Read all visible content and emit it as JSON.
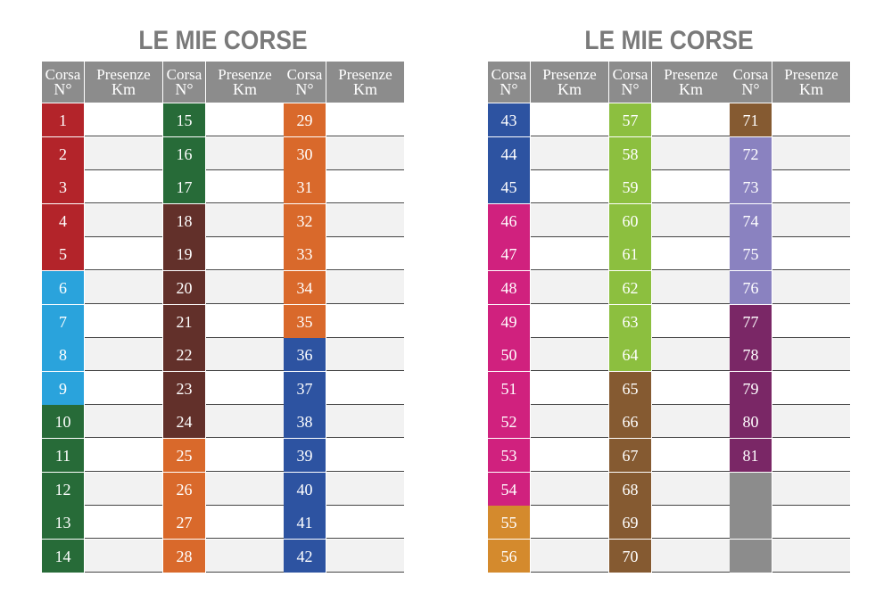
{
  "title": "LE MIE CORSE",
  "header": {
    "corsa": "Corsa",
    "n": "N°",
    "presenze": "Presenze",
    "km": "Km"
  },
  "colors": {
    "red": "#b3242a",
    "sky": "#2aa3dc",
    "green": "#276b38",
    "brown": "#62302a",
    "orange": "#d9692b",
    "navy": "#2d53a1",
    "magenta": "#d0217e",
    "amber": "#d48a2d",
    "lime": "#8cbf3f",
    "bronze": "#855a31",
    "lavender": "#8a82c0",
    "plum": "#7a2766",
    "gray": "#8c8c8c"
  },
  "sheets": [
    {
      "title": "LE MIE CORSE",
      "columns": [
        {
          "numbers": [
            "1",
            "2",
            "3",
            "4",
            "5",
            "6",
            "7",
            "8",
            "9",
            "10",
            "11",
            "12",
            "13",
            "14"
          ],
          "colors": [
            "red",
            "red",
            "red",
            "red",
            "red",
            "sky",
            "sky",
            "sky",
            "sky",
            "green",
            "green",
            "green",
            "green",
            "green"
          ]
        },
        {
          "numbers": [
            "15",
            "16",
            "17",
            "18",
            "19",
            "20",
            "21",
            "22",
            "23",
            "24",
            "25",
            "26",
            "27",
            "28"
          ],
          "colors": [
            "green",
            "green",
            "green",
            "brown",
            "brown",
            "brown",
            "brown",
            "brown",
            "brown",
            "brown",
            "orange",
            "orange",
            "orange",
            "orange"
          ]
        },
        {
          "numbers": [
            "29",
            "30",
            "31",
            "32",
            "33",
            "34",
            "35",
            "36",
            "37",
            "38",
            "39",
            "40",
            "41",
            "42"
          ],
          "colors": [
            "orange",
            "orange",
            "orange",
            "orange",
            "orange",
            "orange",
            "orange",
            "navy",
            "navy",
            "navy",
            "navy",
            "navy",
            "navy",
            "navy"
          ]
        }
      ]
    },
    {
      "title": "LE MIE CORSE",
      "columns": [
        {
          "numbers": [
            "43",
            "44",
            "45",
            "46",
            "47",
            "48",
            "49",
            "50",
            "51",
            "52",
            "53",
            "54",
            "55",
            "56"
          ],
          "colors": [
            "navy",
            "navy",
            "navy",
            "magenta",
            "magenta",
            "magenta",
            "magenta",
            "magenta",
            "magenta",
            "magenta",
            "magenta",
            "magenta",
            "amber",
            "amber"
          ]
        },
        {
          "numbers": [
            "57",
            "58",
            "59",
            "60",
            "61",
            "62",
            "63",
            "64",
            "65",
            "66",
            "67",
            "68",
            "69",
            "70"
          ],
          "colors": [
            "lime",
            "lime",
            "lime",
            "lime",
            "lime",
            "lime",
            "lime",
            "lime",
            "bronze",
            "bronze",
            "bronze",
            "bronze",
            "bronze",
            "bronze"
          ]
        },
        {
          "numbers": [
            "71",
            "72",
            "73",
            "74",
            "75",
            "76",
            "77",
            "78",
            "79",
            "80",
            "81",
            "",
            "",
            ""
          ],
          "colors": [
            "bronze",
            "lavender",
            "lavender",
            "lavender",
            "lavender",
            "lavender",
            "plum",
            "plum",
            "plum",
            "plum",
            "plum",
            "gray",
            "gray",
            "gray"
          ]
        }
      ]
    }
  ]
}
